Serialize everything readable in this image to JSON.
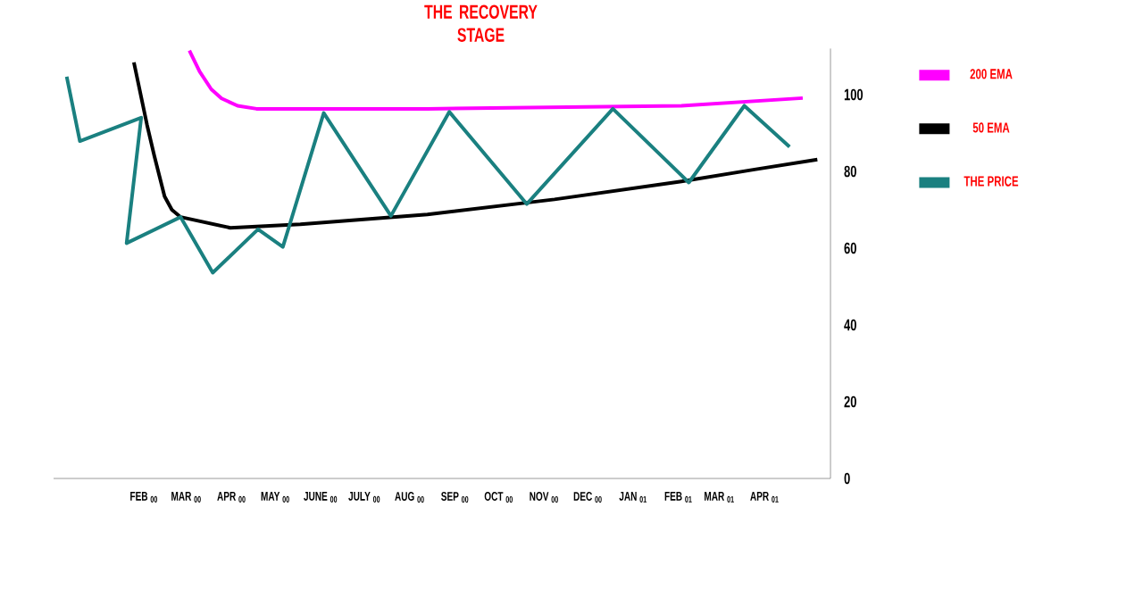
{
  "chart_data": {
    "type": "line",
    "title": "THE RECOVERY STAGE",
    "xlim": [
      "1999-12-01",
      "2001-05-16"
    ],
    "xticks": [
      {
        "value": "2000-02-01",
        "label": "FEB $_{00}$"
      },
      {
        "value": "2000-03-01",
        "label": "MAR $_{00}$"
      },
      {
        "value": "2000-04-01",
        "label": "APR $_{00}$"
      },
      {
        "value": "2000-05-01",
        "label": "MAY $_{00}$"
      },
      {
        "value": "2000-06-01",
        "label": "JUNE $_{00}$"
      },
      {
        "value": "2000-07-01",
        "label": "JULY $_{00}$"
      },
      {
        "value": "2000-08-01",
        "label": "AUG $_{00}$"
      },
      {
        "value": "2000-09-01",
        "label": "SEP $_{00}$"
      },
      {
        "value": "2000-10-01",
        "label": "OCT $_{00}$"
      },
      {
        "value": "2000-11-01",
        "label": "NOV $_{00}$"
      },
      {
        "value": "2000-12-01",
        "label": "DEC $_{00}$"
      },
      {
        "value": "2001-01-01",
        "label": "JAN $_{01}$"
      },
      {
        "value": "2001-02-01",
        "label": "FEB $_{01}$"
      },
      {
        "value": "2001-03-01",
        "label": "MAR $_{01}$"
      },
      {
        "value": "2001-04-01",
        "label": "APR $_{01}$"
      }
    ],
    "series": [
      {
        "name": "200 EMA",
        "color": "#ff00ff",
        "x": [
          "2000-03-03",
          "2000-03-10",
          "2000-03-18",
          "2000-03-25",
          "2000-04-05",
          "2000-04-18",
          "2000-08-13",
          "2001-02-03",
          "2001-04-27"
        ],
        "values": [
          111.5,
          106,
          101.4,
          99,
          97.1,
          96.3,
          96.3,
          97.1,
          99.1
        ]
      },
      {
        "name": "50 EMA",
        "color": "#000000",
        "x": [
          "2000-01-25",
          "2000-02-03",
          "2000-02-08",
          "2000-02-15",
          "2000-02-20",
          "2000-02-26",
          "2000-03-31",
          "2000-05-18",
          "2000-08-13",
          "2000-11-08",
          "2001-02-03",
          "2001-03-25",
          "2001-05-07"
        ],
        "values": [
          108.4,
          92.1,
          84,
          73.5,
          70,
          68.1,
          65.3,
          66.2,
          68.8,
          72.7,
          77.4,
          80.5,
          83.1
        ]
      },
      {
        "name": "THE PRICE",
        "color": "#1a8080",
        "x": [
          "1999-12-10",
          "1999-12-19",
          "2000-01-30",
          "2000-01-20",
          "2000-02-26",
          "2000-03-19",
          "2000-04-19",
          "2000-05-06",
          "2000-06-03",
          "2000-07-19",
          "2000-08-28",
          "2000-10-20",
          "2000-12-18",
          "2001-02-08",
          "2001-03-18",
          "2001-04-18"
        ],
        "values": [
          104.7,
          87.9,
          94.0,
          61.3,
          68.1,
          53.6,
          64.9,
          60.3,
          95.2,
          68.4,
          95.5,
          71.5,
          96.3,
          77.1,
          97.1,
          86.4
        ]
      }
    ],
    "ylim": [
      0,
      112
    ],
    "yticks": [
      0,
      20,
      40,
      60,
      80,
      100
    ],
    "legend": "right",
    "marker": "none",
    "line_style": "solid"
  }
}
